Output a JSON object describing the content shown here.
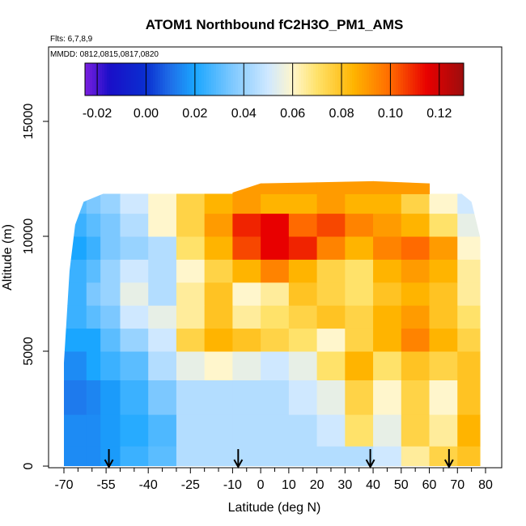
{
  "chart_data": {
    "type": "heatmap",
    "title": "ATOM1 Northbound fC2H3O_PM1_AMS",
    "flights_label": "Flts: 6,7,8,9",
    "dates_label": "MMDD: 0812,0815,0817,0820",
    "xlabel": "Latitude (deg N)",
    "ylabel": "Altitude (m)",
    "xlim": [
      -70,
      82
    ],
    "ylim": [
      0,
      17500
    ],
    "x_ticks": [
      -70,
      -55,
      -40,
      -25,
      -10,
      0,
      10,
      20,
      30,
      40,
      50,
      60,
      70,
      80
    ],
    "x_minor_ticks": [
      -65,
      -60,
      -50,
      -45,
      -35,
      -30,
      -20,
      -15,
      -5,
      5,
      15,
      25,
      35,
      45,
      55,
      65,
      75
    ],
    "y_ticks": [
      0,
      5000,
      10000,
      15000
    ],
    "colorbar": {
      "ticks": [
        -0.02,
        0.0,
        0.02,
        0.04,
        0.06,
        0.08,
        0.1,
        0.12
      ],
      "range": [
        -0.025,
        0.13
      ],
      "stops": [
        {
          "v": -0.025,
          "c": "#7b1fe0"
        },
        {
          "v": -0.015,
          "c": "#1a0fc8"
        },
        {
          "v": 0.0,
          "c": "#0a2fd0"
        },
        {
          "v": 0.01,
          "c": "#1f6fe8"
        },
        {
          "v": 0.02,
          "c": "#1aa6ff"
        },
        {
          "v": 0.035,
          "c": "#7cc8ff"
        },
        {
          "v": 0.05,
          "c": "#cfe8ff"
        },
        {
          "v": 0.06,
          "c": "#fff6cc"
        },
        {
          "v": 0.07,
          "c": "#ffe26a"
        },
        {
          "v": 0.085,
          "c": "#ffb400"
        },
        {
          "v": 0.1,
          "c": "#ff6a00"
        },
        {
          "v": 0.115,
          "c": "#e80000"
        },
        {
          "v": 0.13,
          "c": "#9c0d0d"
        }
      ]
    },
    "arrows_latitude": [
      -54,
      -8,
      39,
      67
    ],
    "grid": {
      "lat_edges": [
        -70,
        -62,
        -57,
        -50,
        -40,
        -30,
        -20,
        -10,
        0,
        10,
        20,
        30,
        40,
        50,
        60,
        70,
        78
      ],
      "alt_rows": [
        {
          "alt": 250,
          "values": [
            0.015,
            0.015,
            0.018,
            0.025,
            0.03,
            0.045,
            0.045,
            0.045,
            0.045,
            0.045,
            0.045,
            0.045,
            0.05,
            0.065,
            0.075,
            0.08
          ]
        },
        {
          "alt": 1500,
          "values": [
            0.015,
            0.015,
            0.018,
            0.022,
            0.028,
            0.045,
            0.045,
            0.045,
            0.045,
            0.045,
            0.05,
            0.07,
            0.055,
            0.075,
            0.065,
            0.085
          ]
        },
        {
          "alt": 3000,
          "values": [
            0.012,
            0.014,
            0.018,
            0.025,
            0.035,
            0.045,
            0.045,
            0.045,
            0.045,
            0.05,
            0.055,
            0.075,
            0.06,
            0.075,
            0.06,
            0.08
          ]
        },
        {
          "alt": 4500,
          "values": [
            0.015,
            0.02,
            0.025,
            0.03,
            0.045,
            0.055,
            0.06,
            0.055,
            0.05,
            0.055,
            0.07,
            0.085,
            0.07,
            0.08,
            0.075,
            0.08
          ]
        },
        {
          "alt": 5500,
          "values": [
            0.02,
            0.02,
            0.03,
            0.04,
            0.05,
            0.075,
            0.085,
            0.08,
            0.075,
            0.07,
            0.06,
            0.075,
            0.085,
            0.095,
            0.085,
            0.075
          ]
        },
        {
          "alt": 6500,
          "values": [
            0.025,
            0.03,
            0.035,
            0.05,
            0.055,
            0.065,
            0.08,
            0.065,
            0.07,
            0.075,
            0.08,
            0.075,
            0.085,
            0.09,
            0.08,
            0.07
          ]
        },
        {
          "alt": 7500,
          "values": [
            0.025,
            0.035,
            0.04,
            0.055,
            0.045,
            0.065,
            0.08,
            0.06,
            0.065,
            0.08,
            0.075,
            0.07,
            0.08,
            0.085,
            0.08,
            0.065
          ]
        },
        {
          "alt": 8500,
          "values": [
            0.025,
            0.03,
            0.04,
            0.05,
            0.045,
            0.06,
            0.075,
            0.085,
            0.095,
            0.085,
            0.075,
            0.07,
            0.085,
            0.09,
            0.085,
            0.065
          ]
        },
        {
          "alt": 9500,
          "values": [
            0.02,
            0.025,
            0.035,
            0.04,
            0.045,
            0.07,
            0.085,
            0.105,
            0.115,
            0.11,
            0.095,
            0.085,
            0.095,
            0.1,
            0.09,
            0.06
          ]
        },
        {
          "alt": 10500,
          "values": [
            0.025,
            0.03,
            0.035,
            0.045,
            0.06,
            0.075,
            0.09,
            0.11,
            0.115,
            0.1,
            0.105,
            0.095,
            0.09,
            0.085,
            0.07,
            0.055
          ]
        },
        {
          "alt": 11500,
          "values": [
            0.03,
            0.035,
            0.04,
            0.05,
            0.06,
            0.075,
            0.085,
            0.09,
            0.085,
            0.085,
            0.09,
            0.085,
            0.085,
            0.075,
            0.06,
            0.05
          ]
        },
        {
          "alt": 12200,
          "values": [
            null,
            null,
            null,
            null,
            null,
            null,
            null,
            0.09,
            0.09,
            0.09,
            0.09,
            0.09,
            0.09,
            0.09,
            null,
            null
          ]
        }
      ],
      "profile_top": [
        [
          -70,
          4500
        ],
        [
          -68,
          8500
        ],
        [
          -66,
          10500
        ],
        [
          -63,
          11500
        ],
        [
          -55,
          11900
        ],
        [
          -20,
          12000
        ],
        [
          -10,
          11900
        ],
        [
          0,
          12300
        ],
        [
          40,
          12400
        ],
        [
          60,
          12300
        ],
        [
          70,
          12000
        ],
        [
          75,
          11500
        ],
        [
          78,
          10000
        ],
        [
          80,
          8000
        ],
        [
          82,
          6000
        ],
        [
          82,
          0
        ]
      ]
    }
  }
}
